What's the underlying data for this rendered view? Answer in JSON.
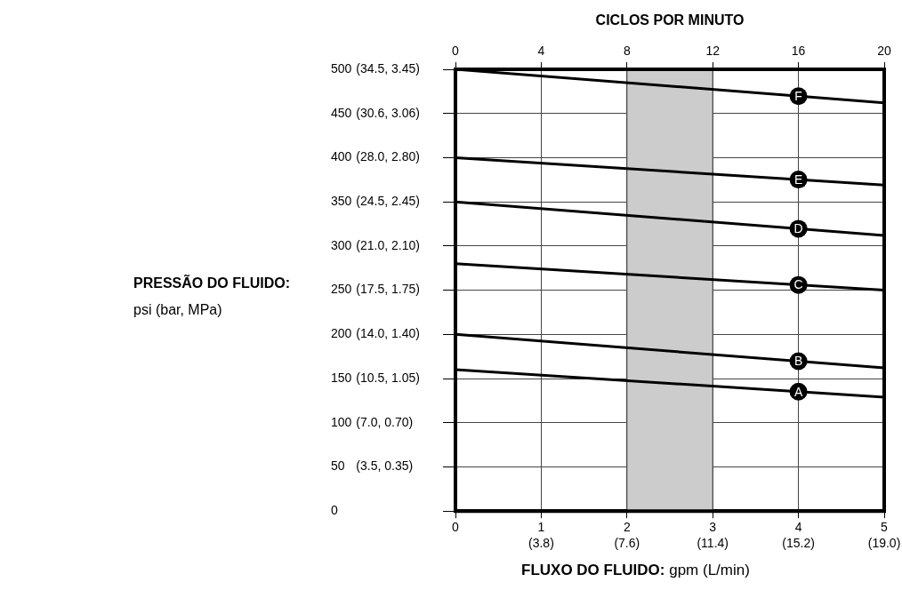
{
  "chart_data": {
    "type": "line",
    "x2label": "CICLOS POR MINUTO",
    "xlabel": "FLUXO DO FLUIDO: gpm (L/min)",
    "x": [
      0,
      5
    ],
    "xlim": [
      0,
      5
    ],
    "xticks": [
      0,
      1,
      2,
      3,
      4,
      5
    ],
    "x2lim": [
      0,
      20
    ],
    "x2ticks": [
      0,
      4,
      8,
      12,
      16,
      20
    ],
    "ylim": [
      0,
      500
    ],
    "yticks": [
      0,
      50,
      100,
      150,
      200,
      250,
      300,
      350,
      400,
      450,
      500
    ],
    "annotations": [
      "(3.8)",
      "(7.6)",
      "(11.4)",
      "(15.2)",
      "(19.0)",
      "(3.5, 0.35)",
      "(7.0, 0.70)",
      "(10.5, 1.05)",
      "(14.0, 1.40)",
      "(17.5, 1.75)",
      "(21.0, 2.10)",
      "(24.5, 2.45)",
      "(28.0, 2.80)",
      "(30.6, 3.06)",
      "(34.5, 3.45)",
      "PRESSÃO DO FLUIDO: psi (bar, MPa)"
    ],
    "grid": true,
    "marker": "none",
    "line_style": "solid",
    "bands": [
      {
        "axis": "x",
        "from": 2,
        "to": 3,
        "color": "#cccccc"
      }
    ],
    "series": [
      {
        "name": "A",
        "color": "#000000",
        "values": [
          160,
          129
        ]
      },
      {
        "name": "B",
        "color": "#000000",
        "values": [
          200,
          162
        ]
      },
      {
        "name": "C",
        "color": "#000000",
        "values": [
          280,
          250
        ]
      },
      {
        "name": "D",
        "color": "#000000",
        "values": [
          350,
          312
        ]
      },
      {
        "name": "E",
        "color": "#000000",
        "values": [
          400,
          369
        ]
      },
      {
        "name": "F",
        "color": "#000000",
        "values": [
          500,
          462
        ]
      }
    ]
  }
}
